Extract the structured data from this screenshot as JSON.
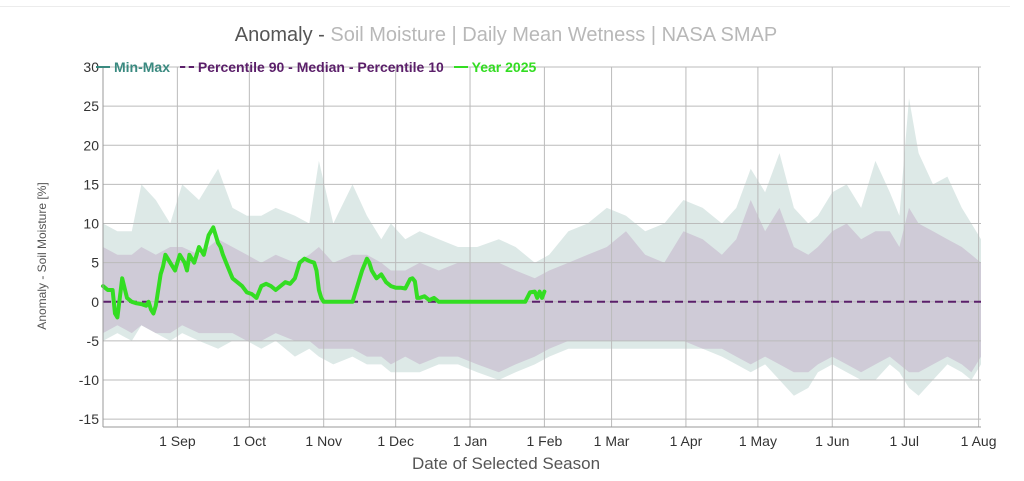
{
  "title": {
    "main": "Anomaly -",
    "sub": "Soil Moisture | Daily Mean Wetness | NASA SMAP"
  },
  "legend": {
    "minmax": "Min-Max",
    "percentiles": "Percentile 90 - Median - Percentile 10",
    "year": "Year 2025"
  },
  "colors": {
    "minmax_band": "#dde9e7",
    "percentile_band": "#cfcbd7",
    "median": "#5b1f6a",
    "year": "#33dd22",
    "grid": "#bbbbbb"
  },
  "chart_data": {
    "type": "area",
    "title": "Anomaly - Soil Moisture | Daily Mean Wetness | NASA SMAP",
    "xlabel": "Date of Selected Season",
    "ylabel": "Anomaly - Soil Moisture [%]",
    "ylim": [
      -16,
      30
    ],
    "xlim_days": [
      0,
      366
    ],
    "y_ticks": [
      30,
      25,
      20,
      15,
      10,
      5,
      0,
      -5,
      -10,
      -15
    ],
    "x_ticks": [
      {
        "label": "1 Sep",
        "day": 31
      },
      {
        "label": "1 Oct",
        "day": 61
      },
      {
        "label": "1 Nov",
        "day": 92
      },
      {
        "label": "1 Dec",
        "day": 122
      },
      {
        "label": "1 Jan",
        "day": 153
      },
      {
        "label": "1 Feb",
        "day": 184
      },
      {
        "label": "1 Mar",
        "day": 212
      },
      {
        "label": "1 Apr",
        "day": 243
      },
      {
        "label": "1 May",
        "day": 273
      },
      {
        "label": "1 Jun",
        "day": 304
      },
      {
        "label": "1 Jul",
        "day": 334
      },
      {
        "label": "1 Aug",
        "day": 365
      }
    ],
    "grid": true,
    "series": [
      {
        "name": "Min-Max",
        "day": [
          0,
          6,
          12,
          16,
          22,
          28,
          33,
          40,
          48,
          54,
          60,
          66,
          72,
          80,
          86,
          90,
          96,
          104,
          110,
          116,
          120,
          126,
          132,
          140,
          148,
          156,
          165,
          172,
          180,
          186,
          194,
          202,
          210,
          218,
          226,
          234,
          242,
          250,
          258,
          264,
          270,
          276,
          282,
          288,
          294,
          298,
          304,
          310,
          316,
          322,
          328,
          332,
          336,
          340,
          346,
          352,
          358,
          362,
          366
        ],
        "upper": [
          10,
          9,
          9,
          15,
          13,
          10,
          15,
          13,
          17,
          12,
          11,
          11,
          12,
          11,
          10,
          18,
          10,
          15,
          11,
          8,
          10,
          8,
          9,
          8,
          7,
          7,
          8,
          7,
          5,
          6,
          9,
          10,
          12,
          11,
          9,
          10,
          13,
          12,
          10,
          12,
          17,
          14,
          19,
          12,
          10,
          11,
          14,
          15,
          12,
          18,
          14,
          11,
          26,
          19,
          15,
          16,
          12,
          10,
          8
        ],
        "lower": [
          -5,
          -4,
          -5,
          -3,
          -4,
          -5,
          -4,
          -5,
          -6,
          -5,
          -5,
          -6,
          -5,
          -7,
          -6,
          -7,
          -8,
          -7,
          -8,
          -8,
          -9,
          -9,
          -9,
          -8,
          -8,
          -9,
          -10,
          -9,
          -8,
          -7,
          -6,
          -6,
          -6,
          -6,
          -6,
          -6,
          -6,
          -6,
          -7,
          -8,
          -9,
          -8,
          -10,
          -12,
          -11,
          -9,
          -8,
          -9,
          -10,
          -10,
          -8,
          -9,
          -11,
          -12,
          -10,
          -8,
          -9,
          -10,
          -8
        ]
      },
      {
        "name": "Percentile 90 - Percentile 10",
        "day": [
          0,
          6,
          12,
          16,
          22,
          28,
          33,
          40,
          48,
          54,
          60,
          66,
          72,
          80,
          86,
          90,
          96,
          104,
          110,
          116,
          120,
          126,
          132,
          140,
          148,
          156,
          165,
          172,
          180,
          186,
          194,
          202,
          210,
          218,
          226,
          234,
          242,
          250,
          258,
          264,
          270,
          276,
          282,
          288,
          294,
          298,
          304,
          310,
          316,
          322,
          328,
          332,
          336,
          340,
          346,
          352,
          358,
          362,
          366
        ],
        "upper": [
          7,
          6,
          6,
          7,
          6,
          7,
          7,
          6,
          8,
          7,
          6,
          5,
          6,
          5,
          6,
          7,
          5,
          6,
          6,
          5,
          4,
          4,
          5,
          4,
          5,
          5,
          5,
          4,
          3,
          4,
          5,
          6,
          7,
          9,
          6,
          5,
          9,
          8,
          6,
          8,
          13,
          9,
          12,
          7,
          6,
          7,
          9,
          10,
          8,
          9,
          9,
          7,
          12,
          10,
          9,
          8,
          7,
          6,
          5
        ],
        "lower": [
          -4,
          -3,
          -4,
          -3,
          -4,
          -4,
          -3,
          -4,
          -4,
          -4,
          -5,
          -5,
          -4,
          -5,
          -5,
          -6,
          -6,
          -6,
          -7,
          -7,
          -8,
          -7,
          -8,
          -7,
          -7,
          -8,
          -9,
          -8,
          -7,
          -6,
          -5,
          -5,
          -5,
          -5,
          -5,
          -5,
          -5,
          -6,
          -6,
          -7,
          -8,
          -7,
          -8,
          -9,
          -9,
          -8,
          -7,
          -8,
          -9,
          -8,
          -7,
          -8,
          -9,
          -9,
          -8,
          -7,
          -8,
          -9,
          -7
        ]
      },
      {
        "name": "Median",
        "day": [
          0,
          366
        ],
        "values": [
          0,
          0
        ]
      },
      {
        "name": "Year 2025",
        "day": [
          0,
          2,
          4,
          5,
          6,
          7,
          8,
          10,
          12,
          14,
          16,
          18,
          19,
          20,
          21,
          22,
          24,
          25,
          26,
          28,
          30,
          32,
          34,
          35,
          36,
          38,
          40,
          42,
          44,
          46,
          47,
          48,
          49,
          50,
          52,
          54,
          56,
          58,
          60,
          62,
          64,
          66,
          68,
          70,
          72,
          74,
          76,
          78,
          80,
          82,
          84,
          86,
          88,
          89,
          90,
          91,
          92,
          94,
          96,
          98,
          100,
          102,
          104,
          108,
          110,
          111,
          112,
          113,
          114,
          116,
          118,
          120,
          122,
          124,
          126,
          128,
          129,
          130,
          131,
          132,
          134,
          136,
          138,
          140,
          144,
          150,
          160,
          170,
          176,
          178,
          180,
          181,
          182,
          183,
          184
        ],
        "values": [
          2,
          1.5,
          1.5,
          -1.5,
          -2,
          0.5,
          3,
          0.5,
          0,
          -0.2,
          -0.3,
          -0.5,
          0,
          -1,
          -1.5,
          -0.5,
          3.5,
          4.5,
          6,
          5,
          4,
          6,
          5,
          4,
          6,
          5,
          7,
          6,
          8.5,
          9.5,
          8.5,
          7.5,
          7,
          6,
          4.5,
          3,
          2.5,
          2,
          1.2,
          1,
          0.5,
          2,
          2.3,
          2,
          1.5,
          2,
          2.5,
          2.3,
          3,
          5,
          5.5,
          5.2,
          5,
          4,
          1.5,
          0.5,
          0,
          0,
          0,
          0,
          0,
          0,
          0,
          4,
          5.5,
          5,
          4,
          3.5,
          3,
          3.5,
          2.5,
          2,
          1.8,
          1.8,
          1.7,
          2.9,
          3,
          2.6,
          0.5,
          0.5,
          0.7,
          0.2,
          0.5,
          0,
          0,
          0,
          0,
          0,
          0,
          1.2,
          1.3,
          0.5,
          1.3,
          0.5,
          1.3
        ]
      }
    ]
  }
}
